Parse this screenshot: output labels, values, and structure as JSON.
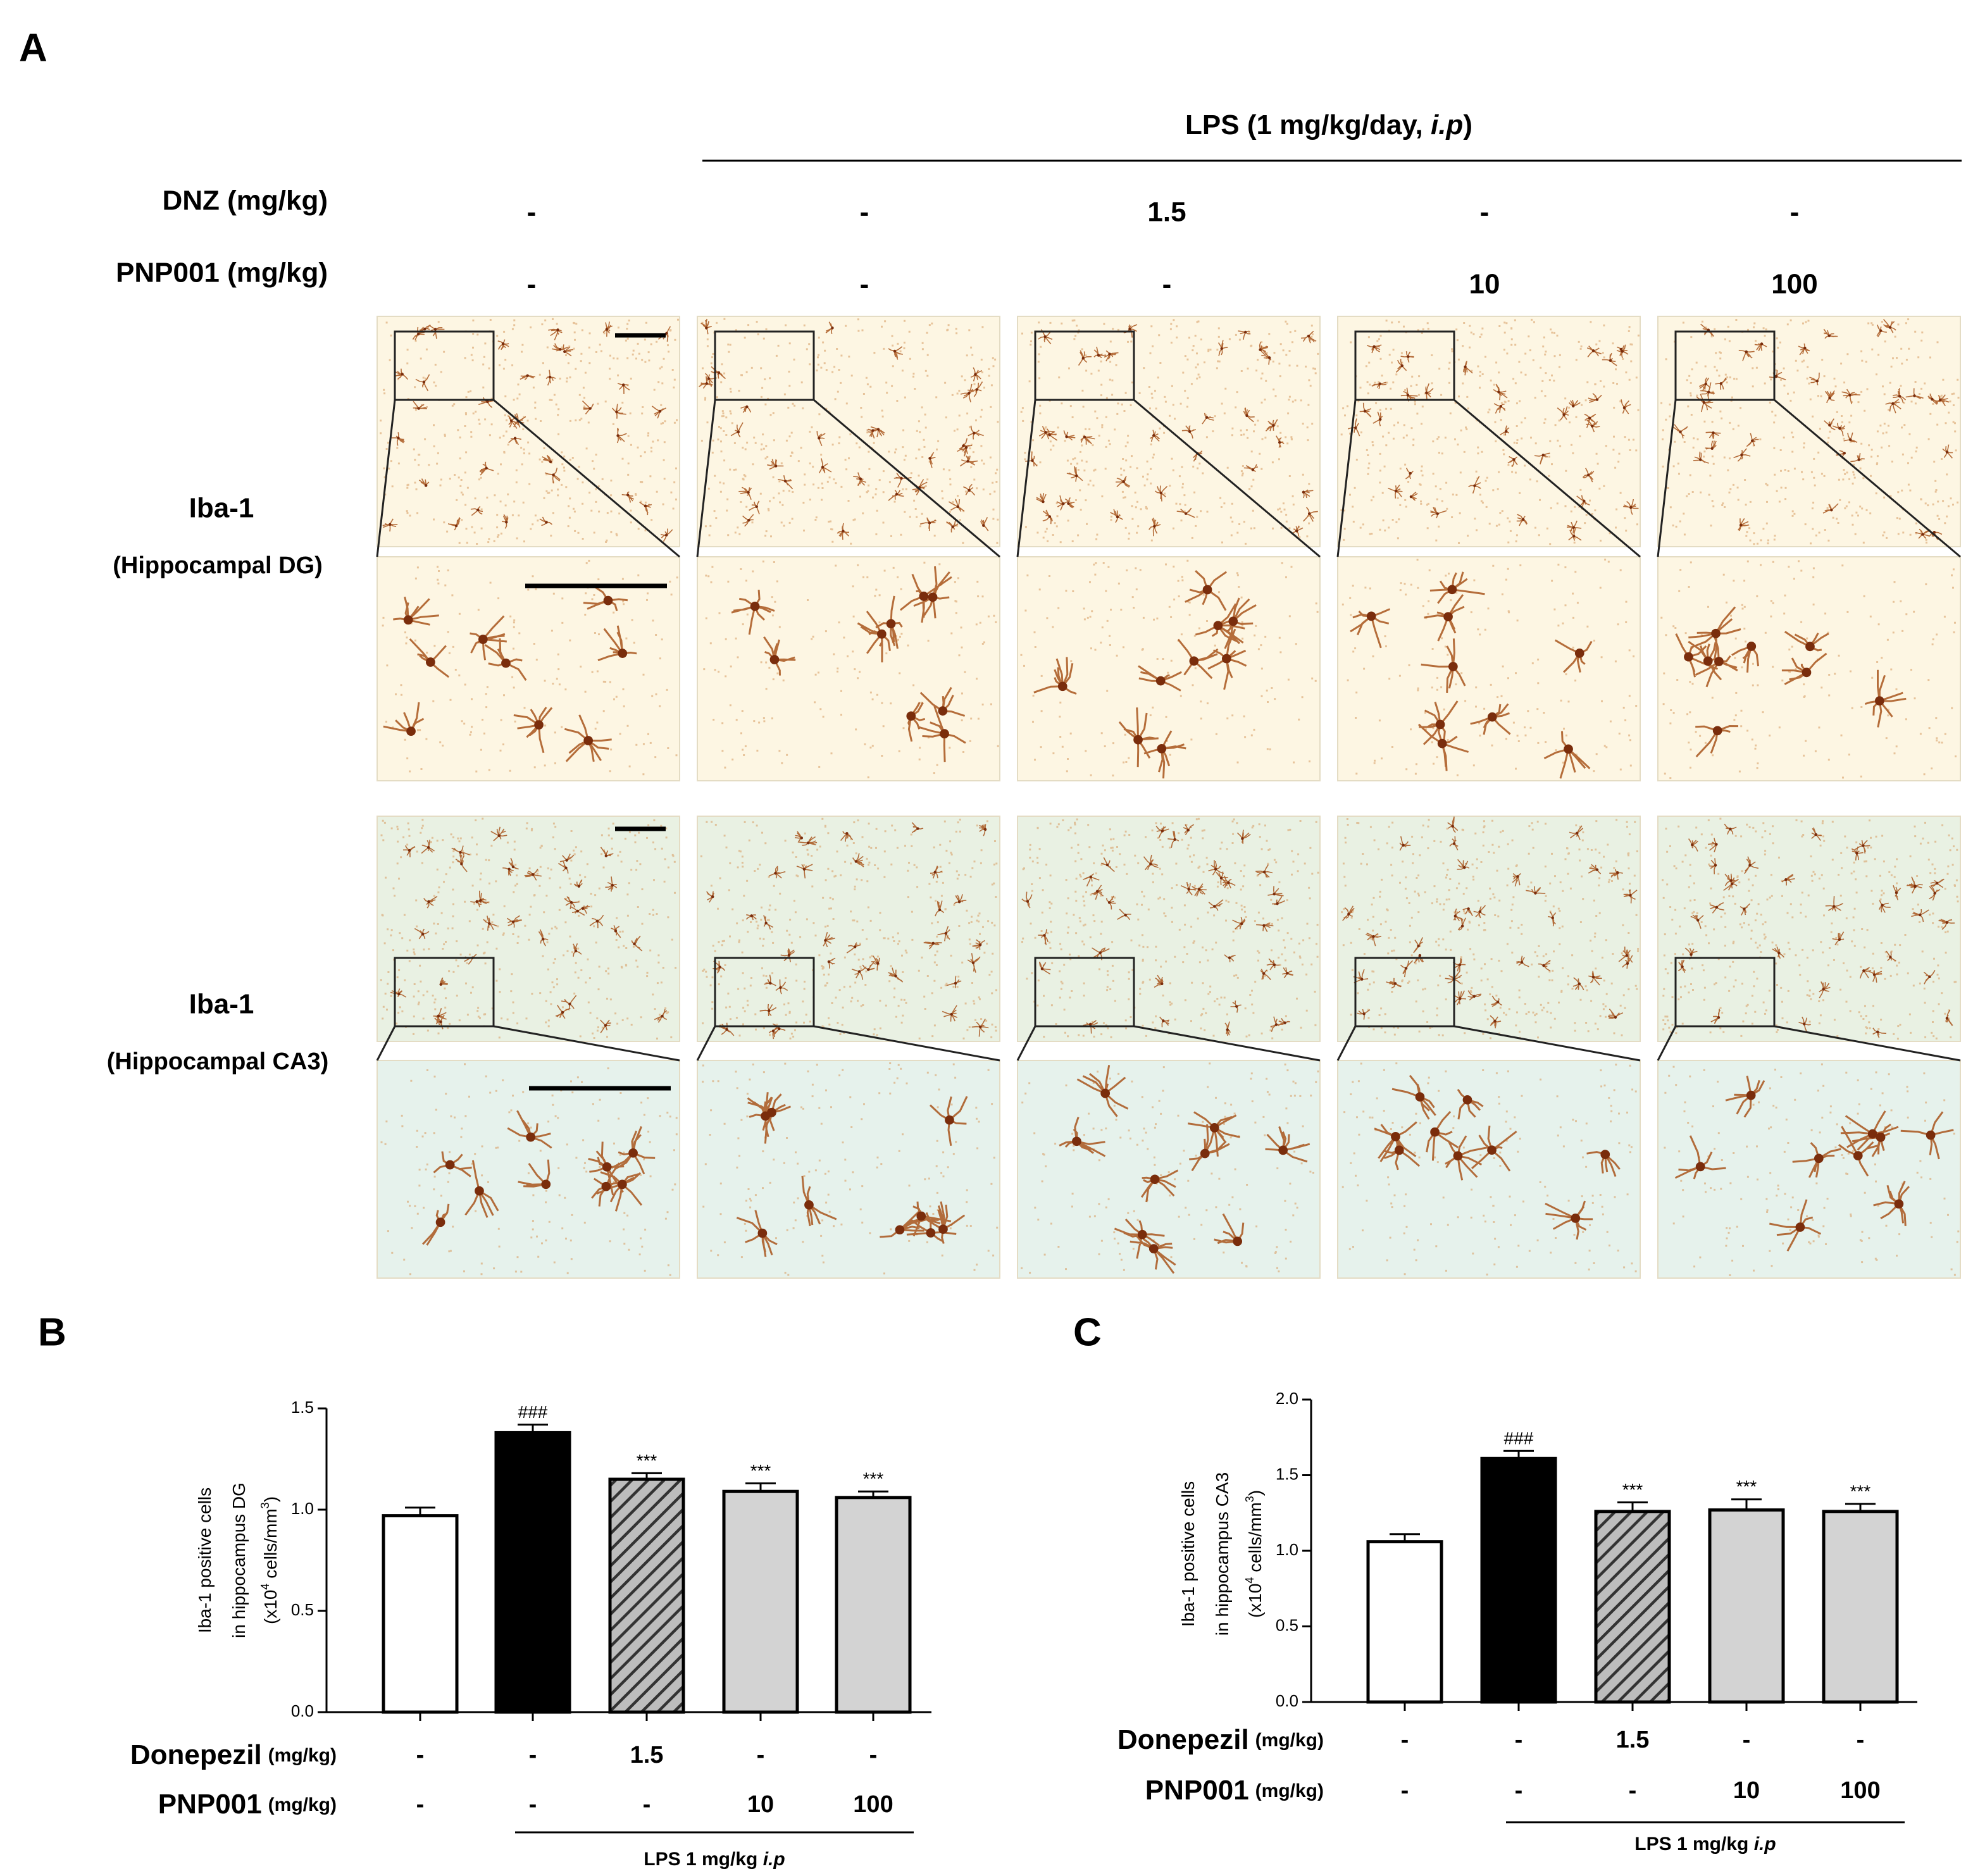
{
  "panel_a": {
    "label": "A",
    "lps": {
      "text": "LPS (1 mg/kg/day, ",
      "italic": "i.p",
      "end": ")"
    },
    "rows": [
      {
        "name": "DNZ (mg/kg)",
        "values": [
          "-",
          "-",
          "1.5",
          "-",
          "-"
        ]
      },
      {
        "name": "PNP001  (mg/kg)",
        "values": [
          "-",
          "-",
          "-",
          "10",
          "100"
        ]
      }
    ],
    "stains": [
      {
        "name": "Iba-1",
        "region": "(Hippocampal DG)"
      },
      {
        "name": "Iba-1",
        "region": "(Hippocampal CA3)"
      }
    ]
  },
  "chart_data": [
    {
      "type": "bar",
      "label": "B",
      "ylabel": [
        [
          "Iba-1 positive cells"
        ],
        [
          "in hippocampus DG"
        ],
        [
          "(x10",
          "4",
          " cells/mm",
          "3",
          ")"
        ]
      ],
      "ylim": [
        0,
        1.5
      ],
      "yticks": [
        {
          "value": 0,
          "label": "0.0"
        },
        0.5,
        {
          "value": 1,
          "label": "1.0"
        },
        1.5
      ],
      "values": [
        0.97,
        1.38,
        1.15,
        1.09,
        1.06
      ],
      "errors": [
        0.04,
        0.04,
        0.03,
        0.04,
        0.03
      ],
      "colors": [
        "#ffffff",
        "#000000",
        "#555555",
        "#d3d3d3",
        "#d3d3d3"
      ],
      "hatch": [
        false,
        false,
        true,
        false,
        false
      ],
      "annotations": [
        null,
        "###",
        "***",
        "***",
        "***"
      ],
      "treatments": [
        {
          "name": "Donepezil",
          "unit": "(mg/kg)",
          "values": [
            "-",
            "-",
            "1.5",
            "-",
            "-"
          ]
        },
        {
          "name": "PNP001",
          "unit": "(mg/kg)",
          "values": [
            "-",
            "-",
            "-",
            "10",
            "100"
          ]
        }
      ],
      "lps": {
        "text": "LPS 1 mg/kg ",
        "italic": "i.p"
      }
    },
    {
      "type": "bar",
      "label": "C",
      "ylabel": [
        [
          "Iba-1 positive cells"
        ],
        [
          "in hippocampus CA3"
        ],
        [
          "(x10",
          "4",
          " cells/mm",
          "3",
          ")"
        ]
      ],
      "ylim": [
        0,
        2
      ],
      "yticks": [
        {
          "value": 0,
          "label": "0.0"
        },
        0.5,
        {
          "value": 1,
          "label": "1.0"
        },
        1.5,
        {
          "value": 2,
          "label": "2.0"
        }
      ],
      "values": [
        1.06,
        1.61,
        1.26,
        1.27,
        1.26
      ],
      "errors": [
        0.05,
        0.05,
        0.06,
        0.07,
        0.05
      ],
      "colors": [
        "#ffffff",
        "#000000",
        "#555555",
        "#d3d3d3",
        "#d3d3d3"
      ],
      "hatch": [
        false,
        false,
        true,
        false,
        false
      ],
      "annotations": [
        null,
        "###",
        "***",
        "***",
        "***"
      ],
      "treatments": [
        {
          "name": "Donepezil",
          "unit": "(mg/kg)",
          "values": [
            "-",
            "-",
            "1.5",
            "-",
            "-"
          ]
        },
        {
          "name": "PNP001",
          "unit": "(mg/kg)",
          "values": [
            "-",
            "-",
            "-",
            "10",
            "100"
          ]
        }
      ],
      "lps": {
        "text": "LPS 1 mg/kg ",
        "italic": "i.p"
      }
    }
  ]
}
